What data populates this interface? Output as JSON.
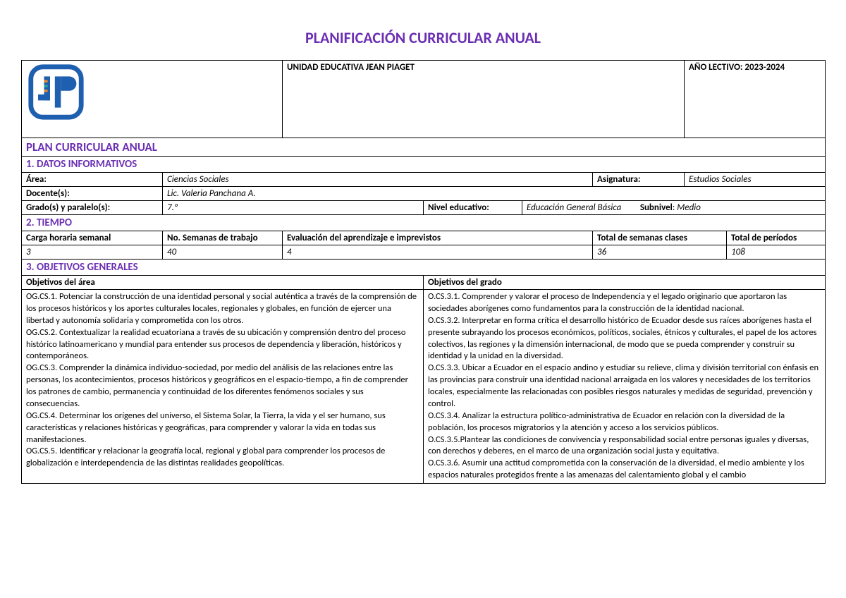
{
  "title": "PLANIFICACIÓN CURRICULAR ANUAL",
  "subtitle": "PLAN CURRICULAR ANUAL",
  "header": {
    "school": "UNIDAD EDUCATIVA JEAN PIAGET",
    "year_label": "AÑO LECTIVO: 2023-2024"
  },
  "logo": {
    "colors": {
      "blue": "#1f5fb0",
      "orange": "#f08a24",
      "teal": "#2aa89a",
      "white": "#ffffff"
    }
  },
  "sections": {
    "s1": "1. DATOS INFORMATIVOS",
    "s2": "2. TIEMPO",
    "s3": "3. OBJETIVOS GENERALES"
  },
  "datos": {
    "area_label": "Área:",
    "area_value": "Ciencias Sociales",
    "asignatura_label": "Asignatura:",
    "asignatura_value": "Estudios Sociales",
    "docente_label": "Docente(s):",
    "docente_value": "Lic. Valeria Panchana A.",
    "grado_label": "Grado(s) y paralelo(s):",
    "grado_value": "7.º",
    "nivel_label": "Nivel educativo:",
    "nivel_value_prefix": "Educación General Básica",
    "subnivel_label": "Subnivel",
    "subnivel_value": "Medio"
  },
  "tiempo": {
    "headers": {
      "h1": "Carga horaria semanal",
      "h2": "No. Semanas de trabajo",
      "h3": "Evaluación del aprendizaje e imprevistos",
      "h4": "Total de semanas clases",
      "h5": "Total de períodos"
    },
    "values": {
      "v1": "3",
      "v2": "40",
      "v3": "4",
      "v4": "36",
      "v5": "108"
    }
  },
  "objetivos": {
    "header_area": "Objetivos del área",
    "header_grado": "Objetivos del grado",
    "area_text": "OG.CS.1. Potenciar la construcción de una identidad personal y social auténtica a través de la comprensión de los procesos históricos y los aportes culturales locales, regionales y globales, en función de ejercer una libertad y autonomía solidaria y comprometida con los otros.\nOG.CS.2. Contextualizar la realidad ecuatoriana a través de su ubicación y comprensión dentro del proceso histórico latinoamericano y mundial para entender sus procesos de dependencia y liberación, históricos y contemporáneos.\nOG.CS.3. Comprender la dinámica individuo-sociedad, por medio del análisis de las relaciones entre las personas, los acontecimientos, procesos históricos y geográficos en el espacio-tiempo, a fin de comprender los patrones de cambio, permanencia y continuidad de los diferentes fenómenos sociales y sus consecuencias.\nOG.CS.4. Determinar los orígenes del universo, el Sistema Solar, la Tierra, la vida y el ser humano, sus características y relaciones históricas y geográficas, para comprender y valorar la vida en todas sus manifestaciones.\nOG.CS.5. Identificar y relacionar la geografía local, regional y global para comprender los procesos de globalización e interdependencia de las distintas realidades geopolíticas.",
    "grado_text": "O.CS.3.1. Comprender y valorar el proceso de Independencia y el legado originario que aportaron las sociedades aborígenes como fundamentos para la construcción de la identidad nacional.\nO.CS.3.2. Interpretar en forma crítica el desarrollo histórico de Ecuador desde sus raíces aborígenes hasta el presente subrayando los procesos económicos, políticos, sociales, étnicos y culturales, el papel de los actores colectivos, las regiones y la dimensión internacional, de modo que se pueda comprender y construir su identidad y la unidad en la diversidad.\nO.CS.3.3. Ubicar a Ecuador en el espacio andino y estudiar su relieve, clima y división territorial con énfasis en las provincias para construir una identidad nacional arraigada en los valores y necesidades de los territorios locales, especialmente las relacionadas con posibles riesgos naturales y medidas de seguridad, prevención y control.\nO.CS.3.4. Analizar la estructura político-administrativa de Ecuador en relación con la diversidad de la población, los procesos migratorios y la atención y acceso a los servicios públicos.\nO.CS.3.5.Plantear las condiciones de convivencia y responsabilidad social entre personas iguales y diversas, con derechos y deberes, en el marco de una organización social justa y equitativa.\nO.CS.3.6. Asumir una actitud comprometida con la conservación de la diversidad, el medio ambiente y los espacios naturales protegidos frente a las amenazas del calentamiento global y el cambio"
  },
  "styling": {
    "title_color": "#6b2fb3",
    "border_color": "#000000",
    "text_color": "#000000",
    "background": "#ffffff",
    "title_fontsize": 22,
    "subtitle_fontsize": 17,
    "section_fontsize": 15,
    "body_fontsize": 13
  }
}
